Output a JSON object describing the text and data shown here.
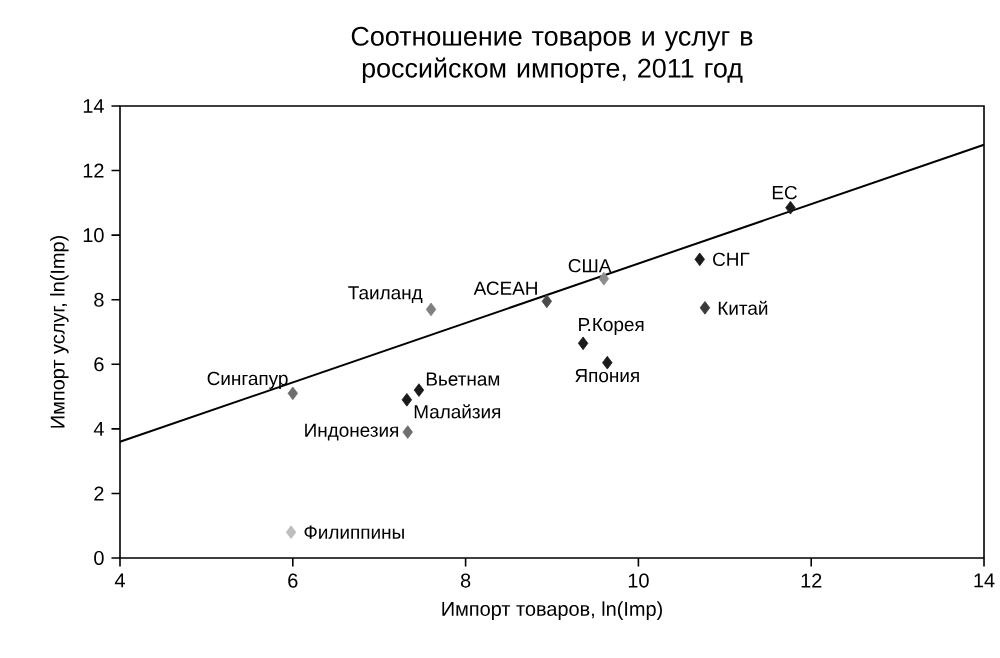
{
  "chart_data": {
    "type": "scatter",
    "title": "Соотношение товаров и услуг в российском импорте, 2011 год",
    "xlabel": "Импорт товаров, ln(Imp)",
    "ylabel": "Импорт услуг, ln(Imp)",
    "xlim": [
      4,
      14
    ],
    "ylim": [
      0,
      14
    ],
    "xticks": [
      4,
      6,
      8,
      10,
      12,
      14
    ],
    "yticks": [
      0,
      2,
      4,
      6,
      8,
      10,
      12,
      14
    ],
    "grid": false,
    "marker": "diamond",
    "series": [
      {
        "x": [
          6.0,
          7.6,
          8.94,
          7.46,
          7.32,
          7.33,
          5.98,
          9.6,
          9.36,
          9.64,
          10.71,
          10.77,
          11.76
        ],
        "values": [
          5.1,
          7.7,
          7.95,
          5.2,
          4.9,
          3.9,
          0.8,
          8.65,
          6.65,
          6.05,
          9.25,
          7.75,
          10.85
        ],
        "colors": [
          "#6e6e6e",
          "#808080",
          "#4a4a4a",
          "#1a1a1a",
          "#1a1a1a",
          "#6e6e6e",
          "#bdbdbd",
          "#8c8c8c",
          "#1a1a1a",
          "#1a1a1a",
          "#1a1a1a",
          "#3a3a3a",
          "#1a1a1a"
        ]
      },
      {
        "type": "line",
        "x": [
          4,
          14
        ],
        "values": [
          3.6,
          12.8
        ],
        "color": "#000000",
        "marker": "none"
      }
    ],
    "annotations": [
      {
        "text": "Сингапур",
        "x": 6.0,
        "y": 5.1
      },
      {
        "text": "Таиланд",
        "x": 7.6,
        "y": 7.7
      },
      {
        "text": "АСЕАН",
        "x": 8.94,
        "y": 7.95
      },
      {
        "text": "Вьетнам",
        "x": 7.46,
        "y": 5.2
      },
      {
        "text": "Малайзия",
        "x": 7.32,
        "y": 4.9
      },
      {
        "text": "Индонезия",
        "x": 7.33,
        "y": 3.9
      },
      {
        "text": "Филиппины",
        "x": 5.98,
        "y": 0.8
      },
      {
        "text": "США",
        "x": 9.6,
        "y": 8.65
      },
      {
        "text": "Р.Корея",
        "x": 9.36,
        "y": 6.65
      },
      {
        "text": "Япония",
        "x": 9.64,
        "y": 6.05
      },
      {
        "text": "СНГ",
        "x": 10.71,
        "y": 9.25
      },
      {
        "text": "Китай",
        "x": 10.77,
        "y": 7.75
      },
      {
        "text": "ЕС",
        "x": 11.76,
        "y": 10.85
      }
    ]
  }
}
